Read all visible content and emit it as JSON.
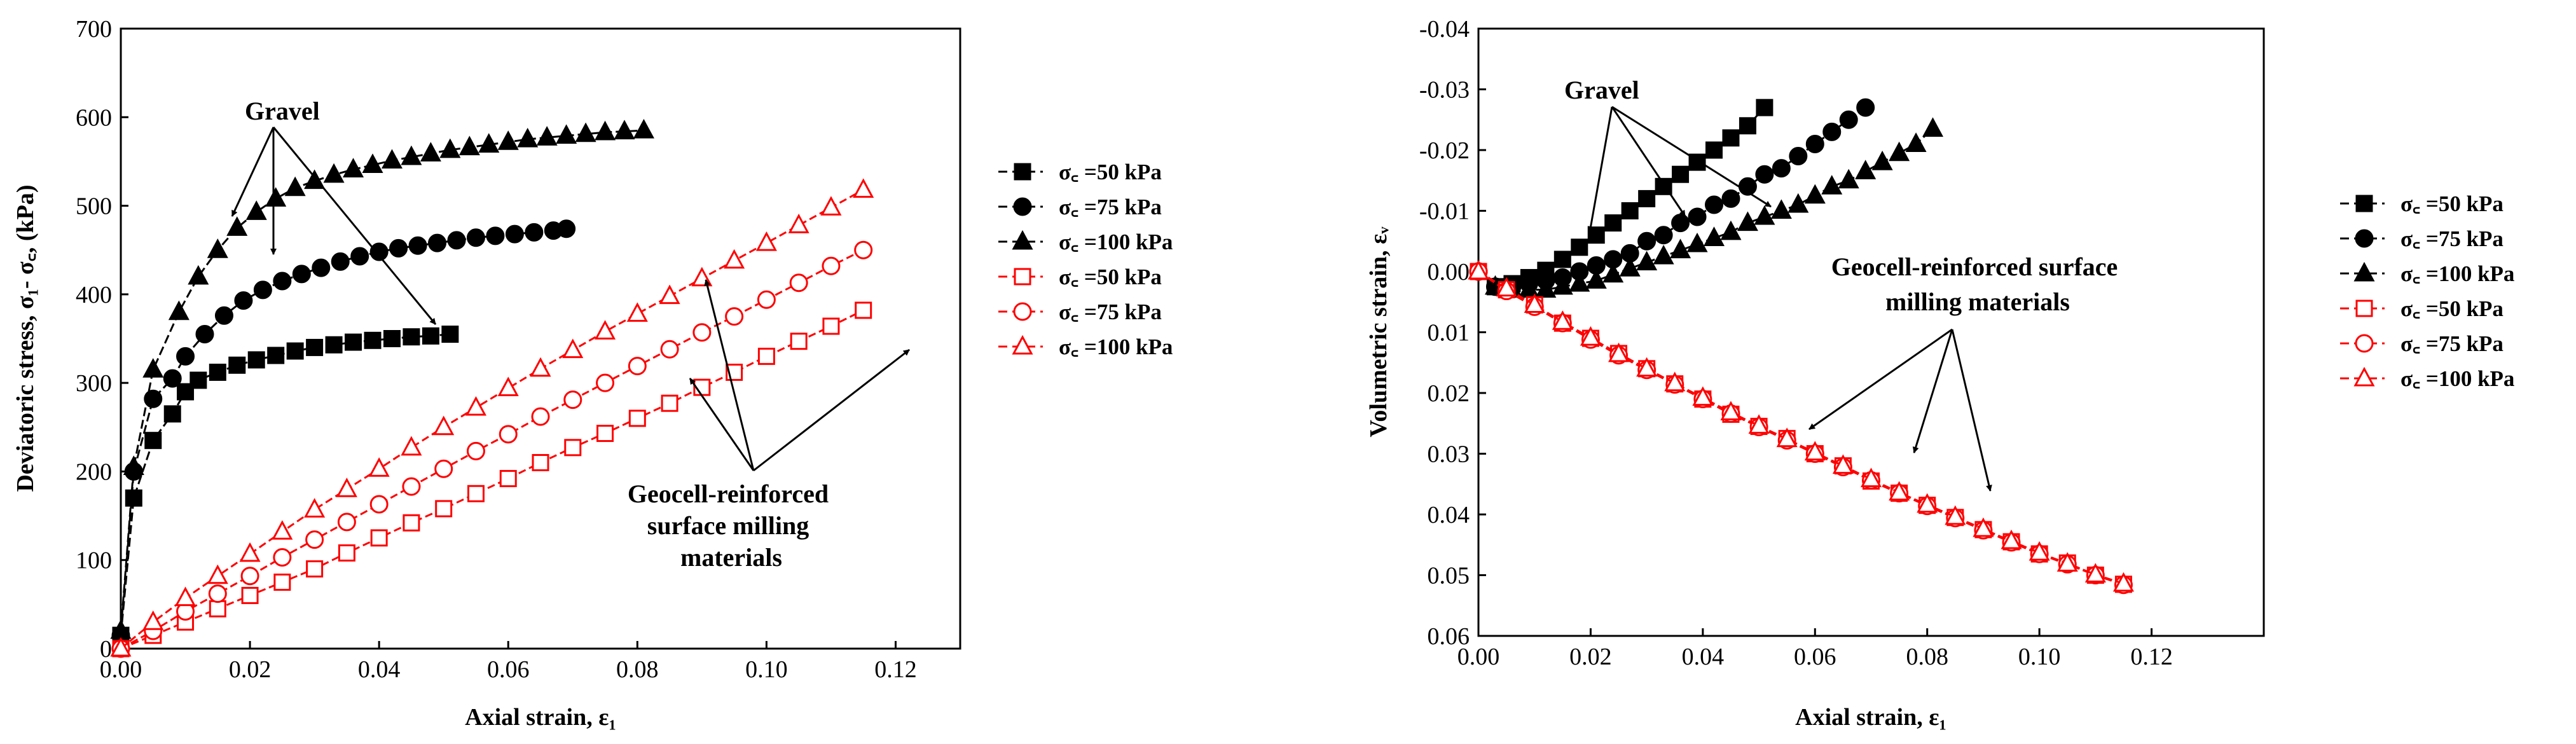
{
  "chart_data": [
    {
      "type": "line",
      "xlabel": "Axial strain, ε₁",
      "ylabel": "Deviatoric stress, σ₁- σ꜀, (kPa)",
      "xlim": [
        0,
        0.13
      ],
      "ylim": [
        0,
        700
      ],
      "xticks": [
        "0.00",
        "0.02",
        "0.04",
        "0.06",
        "0.08",
        "0.10",
        "0.12"
      ],
      "yticks": [
        "0",
        "100",
        "200",
        "300",
        "400",
        "500",
        "600",
        "700"
      ],
      "grid": false,
      "legend_position": "right",
      "series": [
        {
          "name": "σ꜀ =50 kPa",
          "group": "Gravel",
          "color": "#000000",
          "marker": "square",
          "filled": true,
          "x": [
            0,
            0.002,
            0.005,
            0.008,
            0.01,
            0.012,
            0.015,
            0.018,
            0.021,
            0.024,
            0.027,
            0.03,
            0.033,
            0.036,
            0.039,
            0.042,
            0.045,
            0.048,
            0.051
          ],
          "y": [
            15,
            170,
            235,
            265,
            290,
            303,
            312,
            320,
            326,
            331,
            336,
            340,
            343,
            346,
            348,
            350,
            352,
            353,
            355
          ]
        },
        {
          "name": "σ꜀ =75 kPa",
          "group": "Gravel",
          "color": "#000000",
          "marker": "circle",
          "filled": true,
          "x": [
            0,
            0.002,
            0.005,
            0.008,
            0.01,
            0.013,
            0.016,
            0.019,
            0.022,
            0.025,
            0.028,
            0.031,
            0.034,
            0.037,
            0.04,
            0.043,
            0.046,
            0.049,
            0.052,
            0.055,
            0.058,
            0.061,
            0.064,
            0.067,
            0.069
          ],
          "y": [
            15,
            200,
            282,
            305,
            330,
            355,
            376,
            393,
            405,
            415,
            423,
            430,
            437,
            443,
            448,
            452,
            455,
            458,
            461,
            464,
            466,
            468,
            470,
            472,
            474
          ]
        },
        {
          "name": "σ꜀ =100 kPa",
          "group": "Gravel",
          "color": "#000000",
          "marker": "triangle",
          "filled": true,
          "x": [
            0,
            0.002,
            0.005,
            0.009,
            0.012,
            0.015,
            0.018,
            0.021,
            0.024,
            0.027,
            0.03,
            0.033,
            0.036,
            0.039,
            0.042,
            0.045,
            0.048,
            0.051,
            0.054,
            0.057,
            0.06,
            0.063,
            0.066,
            0.069,
            0.072,
            0.075,
            0.078,
            0.081
          ],
          "y": [
            20,
            205,
            315,
            380,
            420,
            450,
            475,
            493,
            508,
            520,
            528,
            535,
            541,
            546,
            551,
            555,
            559,
            563,
            566,
            569,
            572,
            575,
            577,
            579,
            581,
            583,
            584,
            585
          ]
        },
        {
          "name": "σ꜀ =50 kPa",
          "group": "Geocell-reinforced surface milling materials",
          "color": "#ff0000",
          "marker": "square",
          "filled": false,
          "x": [
            0,
            0.005,
            0.01,
            0.015,
            0.02,
            0.025,
            0.03,
            0.035,
            0.04,
            0.045,
            0.05,
            0.055,
            0.06,
            0.065,
            0.07,
            0.075,
            0.08,
            0.085,
            0.09,
            0.095,
            0.1,
            0.105,
            0.11,
            0.115
          ],
          "y": [
            0,
            15,
            30,
            45,
            60,
            75,
            90,
            108,
            125,
            142,
            158,
            175,
            192,
            210,
            227,
            243,
            260,
            277,
            295,
            312,
            330,
            347,
            364,
            382
          ]
        },
        {
          "name": "σ꜀ =75 kPa",
          "group": "Geocell-reinforced surface milling materials",
          "color": "#ff0000",
          "marker": "circle",
          "filled": false,
          "x": [
            0,
            0.005,
            0.01,
            0.015,
            0.02,
            0.025,
            0.03,
            0.035,
            0.04,
            0.045,
            0.05,
            0.055,
            0.06,
            0.065,
            0.07,
            0.075,
            0.08,
            0.085,
            0.09,
            0.095,
            0.1,
            0.105,
            0.11,
            0.115
          ],
          "y": [
            0,
            20,
            42,
            62,
            82,
            103,
            123,
            143,
            163,
            183,
            203,
            223,
            242,
            262,
            281,
            300,
            319,
            338,
            357,
            375,
            394,
            413,
            432,
            450
          ]
        },
        {
          "name": "σ꜀ =100 kPa",
          "group": "Geocell-reinforced surface milling materials",
          "color": "#ff0000",
          "marker": "triangle",
          "filled": false,
          "x": [
            0,
            0.005,
            0.01,
            0.015,
            0.02,
            0.025,
            0.03,
            0.035,
            0.04,
            0.045,
            0.05,
            0.055,
            0.06,
            0.065,
            0.07,
            0.075,
            0.08,
            0.085,
            0.09,
            0.095,
            0.1,
            0.105,
            0.11,
            0.115
          ],
          "y": [
            0,
            30,
            57,
            82,
            107,
            132,
            157,
            180,
            203,
            227,
            250,
            272,
            294,
            316,
            337,
            358,
            378,
            398,
            418,
            438,
            458,
            478,
            498,
            518
          ]
        }
      ],
      "annotations": [
        "Gravel",
        "Geocell-reinforced\nsurface milling\nmaterials"
      ]
    },
    {
      "type": "line",
      "xlabel": "Axial strain, ε₁",
      "ylabel": "Volumetric strain, εᵥ",
      "xlim": [
        0,
        0.14
      ],
      "ylim": [
        -0.04,
        0.06
      ],
      "y_inverted": true,
      "xticks": [
        "0.00",
        "0.02",
        "0.04",
        "0.06",
        "0.08",
        "0.10",
        "0.12"
      ],
      "yticks": [
        "-0.04",
        "-0.03",
        "-0.02",
        "-0.01",
        "0.00",
        "0.01",
        "0.02",
        "0.03",
        "0.04",
        "0.05",
        "0.06"
      ],
      "grid": false,
      "legend_position": "right",
      "series": [
        {
          "name": "σ꜀ =50 kPa",
          "group": "Gravel",
          "color": "#000000",
          "marker": "square",
          "filled": true,
          "x": [
            0,
            0.003,
            0.006,
            0.009,
            0.012,
            0.015,
            0.018,
            0.021,
            0.024,
            0.027,
            0.03,
            0.033,
            0.036,
            0.039,
            0.042,
            0.045,
            0.048,
            0.051
          ],
          "y": [
            0,
            0.0025,
            0.002,
            0.001,
            -0.0002,
            -0.002,
            -0.004,
            -0.006,
            -0.008,
            -0.01,
            -0.012,
            -0.014,
            -0.016,
            -0.018,
            -0.02,
            -0.022,
            -0.024,
            -0.027
          ]
        },
        {
          "name": "σ꜀ =75 kPa",
          "group": "Gravel",
          "color": "#000000",
          "marker": "circle",
          "filled": true,
          "x": [
            0,
            0.003,
            0.006,
            0.009,
            0.012,
            0.015,
            0.018,
            0.021,
            0.024,
            0.027,
            0.03,
            0.033,
            0.036,
            0.039,
            0.042,
            0.045,
            0.048,
            0.051,
            0.054,
            0.057,
            0.06,
            0.063,
            0.066,
            0.069
          ],
          "y": [
            0,
            0.0025,
            0.0025,
            0.002,
            0.0015,
            0.001,
            0.0,
            -0.001,
            -0.002,
            -0.003,
            -0.005,
            -0.006,
            -0.008,
            -0.009,
            -0.011,
            -0.012,
            -0.014,
            -0.016,
            -0.017,
            -0.019,
            -0.021,
            -0.023,
            -0.025,
            -0.027
          ]
        },
        {
          "name": "σ꜀ =100 kPa",
          "group": "Gravel",
          "color": "#000000",
          "marker": "triangle",
          "filled": true,
          "x": [
            0,
            0.003,
            0.006,
            0.009,
            0.012,
            0.015,
            0.018,
            0.021,
            0.024,
            0.027,
            0.03,
            0.033,
            0.036,
            0.039,
            0.042,
            0.045,
            0.048,
            0.051,
            0.054,
            0.057,
            0.06,
            0.063,
            0.066,
            0.069,
            0.072,
            0.075,
            0.078,
            0.081
          ],
          "y": [
            0,
            0.0025,
            0.003,
            0.003,
            0.003,
            0.0025,
            0.002,
            0.0015,
            0.0005,
            -0.0005,
            -0.0015,
            -0.0025,
            -0.0035,
            -0.0045,
            -0.0055,
            -0.0065,
            -0.008,
            -0.009,
            -0.01,
            -0.011,
            -0.0125,
            -0.014,
            -0.015,
            -0.0165,
            -0.018,
            -0.0195,
            -0.021,
            -0.0235
          ]
        },
        {
          "name": "σ꜀ =50 kPa",
          "group": "Geocell-reinforced surface milling materials",
          "color": "#ff0000",
          "marker": "square",
          "filled": false,
          "x": [
            0,
            0.005,
            0.01,
            0.015,
            0.02,
            0.025,
            0.03,
            0.035,
            0.04,
            0.045,
            0.05,
            0.055,
            0.06,
            0.065,
            0.07,
            0.075,
            0.08,
            0.085,
            0.09,
            0.095,
            0.1,
            0.105,
            0.11,
            0.115
          ],
          "y": [
            0,
            0.003,
            0.0055,
            0.0085,
            0.011,
            0.0135,
            0.016,
            0.0185,
            0.021,
            0.0235,
            0.0255,
            0.0275,
            0.03,
            0.032,
            0.0345,
            0.0365,
            0.0385,
            0.0405,
            0.0425,
            0.0445,
            0.0465,
            0.048,
            0.05,
            0.0515
          ]
        },
        {
          "name": "σ꜀ =75 kPa",
          "group": "Geocell-reinforced surface milling materials",
          "color": "#ff0000",
          "marker": "circle",
          "filled": false,
          "x": [
            0,
            0.005,
            0.01,
            0.015,
            0.02,
            0.025,
            0.03,
            0.035,
            0.04,
            0.045,
            0.05,
            0.055,
            0.06,
            0.065,
            0.07,
            0.075,
            0.08,
            0.085,
            0.09,
            0.095,
            0.1,
            0.105,
            0.11,
            0.115
          ],
          "y": [
            0,
            0.0032,
            0.0058,
            0.0085,
            0.0112,
            0.0138,
            0.0162,
            0.0186,
            0.021,
            0.0234,
            0.0256,
            0.0278,
            0.03,
            0.0322,
            0.0344,
            0.0365,
            0.0386,
            0.0406,
            0.0426,
            0.0446,
            0.0465,
            0.0482,
            0.05,
            0.0516
          ]
        },
        {
          "name": "σ꜀ =100 kPa",
          "group": "Geocell-reinforced surface milling materials",
          "color": "#ff0000",
          "marker": "triangle",
          "filled": false,
          "x": [
            0,
            0.005,
            0.01,
            0.015,
            0.02,
            0.025,
            0.03,
            0.035,
            0.04,
            0.045,
            0.05,
            0.055,
            0.06,
            0.065,
            0.07,
            0.075,
            0.08,
            0.085,
            0.09,
            0.095,
            0.1,
            0.105,
            0.11,
            0.115
          ],
          "y": [
            0,
            0.0028,
            0.0055,
            0.0083,
            0.0109,
            0.0136,
            0.016,
            0.0184,
            0.0208,
            0.0232,
            0.0254,
            0.0276,
            0.0298,
            0.032,
            0.0342,
            0.0364,
            0.0384,
            0.0404,
            0.0424,
            0.0444,
            0.0463,
            0.0481,
            0.0499,
            0.0514
          ]
        }
      ],
      "annotations": [
        "Gravel",
        "Geocell-reinforced surface\nmilling materials"
      ]
    }
  ]
}
